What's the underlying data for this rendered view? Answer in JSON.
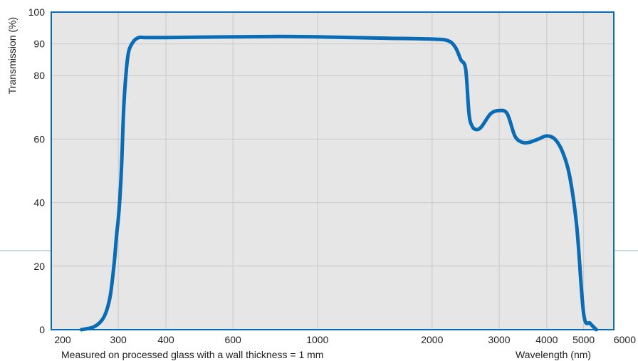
{
  "chart_data": {
    "type": "line",
    "title": "",
    "xlabel": "Wavelength  (nm)",
    "ylabel": "Transmission  (%)",
    "footnote": "Measured on processed glass with a wall thickness  = 1 mm",
    "x_scale": "log",
    "xlim": [
      200,
      6000
    ],
    "ylim": [
      0,
      100
    ],
    "grid": true,
    "x_ticks": [
      200,
      300,
      400,
      600,
      1000,
      2000,
      3000,
      4000,
      5000,
      6000
    ],
    "x_tick_labels": [
      "200",
      "300",
      "400",
      "600",
      "1000",
      "2000",
      "3000",
      "4000",
      "5000",
      "6000"
    ],
    "y_ticks": [
      0,
      20,
      40,
      60,
      80,
      90,
      100
    ],
    "y_tick_labels": [
      "0",
      "20",
      "40",
      "60",
      "80",
      "90",
      "100"
    ],
    "series": [
      {
        "color": "#0a6cb5",
        "x": [
          240,
          260,
          275,
          285,
          292,
          297,
          300,
          303,
          306,
          310,
          315,
          320,
          330,
          340,
          350,
          360,
          400,
          600,
          800,
          1000,
          1500,
          2000,
          2200,
          2300,
          2380,
          2450,
          2500,
          2550,
          2620,
          2700,
          2850,
          3000,
          3150,
          3300,
          3450,
          3600,
          3800,
          4000,
          4200,
          4400,
          4600,
          4800,
          5000,
          5200,
          5400
        ],
        "values": [
          0,
          1,
          4,
          10,
          20,
          30,
          35,
          42,
          52,
          70,
          82,
          88,
          91,
          92,
          92,
          92,
          92,
          92.2,
          92.3,
          92.2,
          91.8,
          91.5,
          91,
          89,
          85,
          82,
          68,
          64,
          63,
          64,
          68,
          69,
          68,
          61,
          59,
          59,
          60,
          61,
          60,
          56,
          48,
          32,
          5,
          2,
          0
        ]
      }
    ]
  }
}
